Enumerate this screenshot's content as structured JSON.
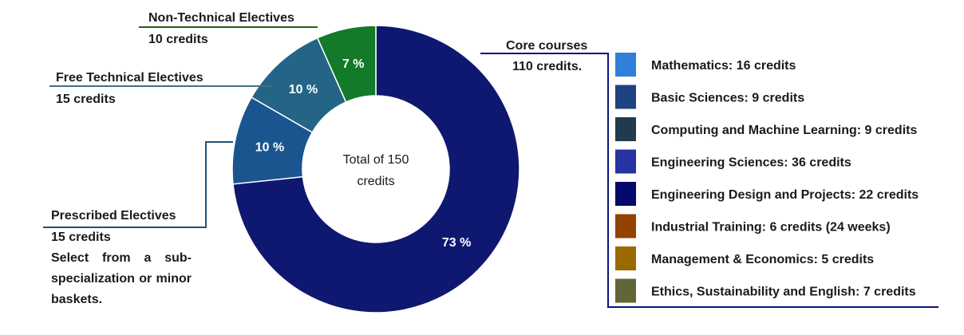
{
  "chart_data": {
    "type": "pie",
    "center_label_lines": [
      "Total of 150",
      "credits"
    ],
    "slices": [
      {
        "name": "Core courses",
        "credits_text": "110 credits.",
        "value": 110,
        "percent_label": "73 %",
        "color": "#0f1870"
      },
      {
        "name": "Prescribed Electives",
        "credits_text": "15 credits",
        "value": 15,
        "percent_label": "10 %",
        "color": "#1a5590"
      },
      {
        "name": "Free Technical Electives",
        "credits_text": "15 credits",
        "value": 15,
        "percent_label": "10 %",
        "color": "#236487"
      },
      {
        "name": "Non-Technical Electives",
        "credits_text": "10 credits",
        "value": 10,
        "percent_label": "7 %",
        "color": "#127a28"
      }
    ],
    "prescribed_note": "Select from a sub-specialization or minor baskets.",
    "legend": [
      {
        "label": "Mathematics:  16 credits",
        "color": "#2e80d8"
      },
      {
        "label": "Basic Sciences: 9 credits",
        "color": "#1e4380"
      },
      {
        "label": "Computing and Machine Learning: 9 credits",
        "color": "#213a4e"
      },
      {
        "label": "Engineering Sciences: 36 credits",
        "color": "#2732a3"
      },
      {
        "label": "Engineering Design and Projects: 22 credits",
        "color": "#030a6b"
      },
      {
        "label": "Industrial Training: 6 credits (24 weeks)",
        "color": "#934200"
      },
      {
        "label": "Management & Economics: 5 credits",
        "color": "#9a6a00"
      },
      {
        "label": "Ethics, Sustainability and English: 7 credits",
        "color": "#626536"
      }
    ]
  }
}
